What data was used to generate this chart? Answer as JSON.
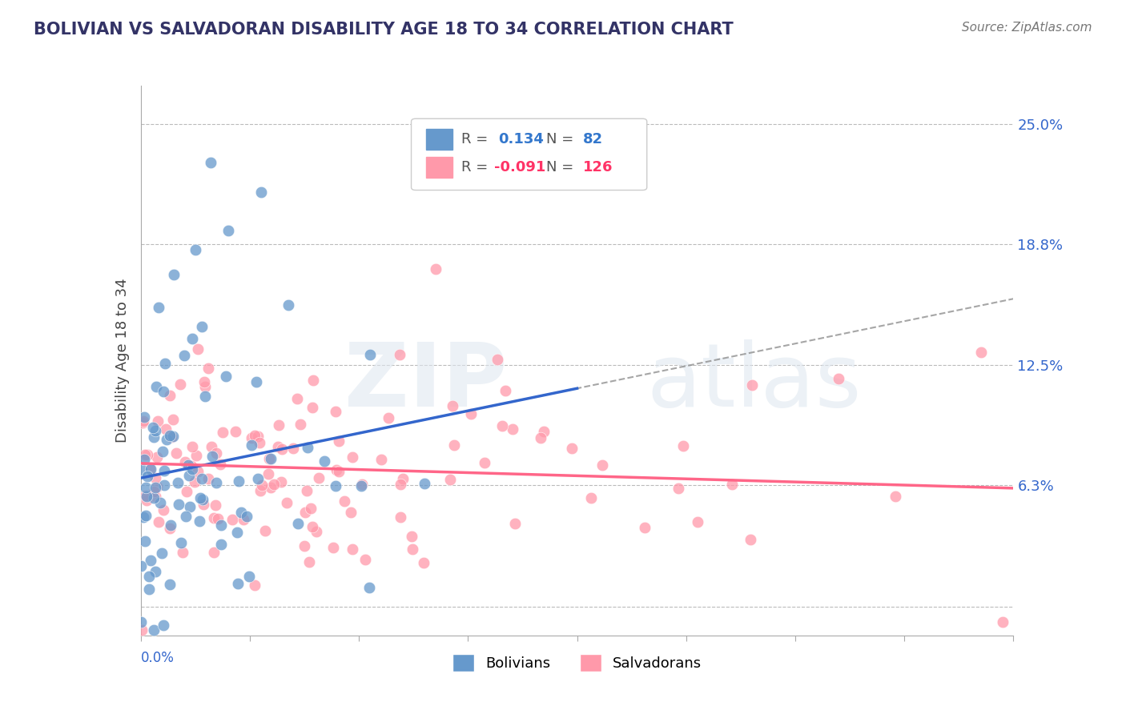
{
  "title": "BOLIVIAN VS SALVADORAN DISABILITY AGE 18 TO 34 CORRELATION CHART",
  "source": "Source: ZipAtlas.com",
  "ylabel": "Disability Age 18 to 34",
  "yticks": [
    0.0,
    0.063,
    0.125,
    0.188,
    0.25
  ],
  "ytick_labels": [
    "",
    "6.3%",
    "12.5%",
    "18.8%",
    "25.0%"
  ],
  "xlim": [
    0.0,
    0.4
  ],
  "ylim": [
    -0.015,
    0.27
  ],
  "bolivians_R": 0.134,
  "bolivians_N": 82,
  "salvadorans_R": -0.091,
  "salvadorans_N": 126,
  "blue_color": "#6699CC",
  "pink_color": "#FF99AA",
  "blue_line_color": "#3366CC",
  "pink_line_color": "#FF6688",
  "legend_R_blue_color": "#3377CC",
  "legend_R_pink_color": "#FF3366",
  "background_color": "#FFFFFF"
}
